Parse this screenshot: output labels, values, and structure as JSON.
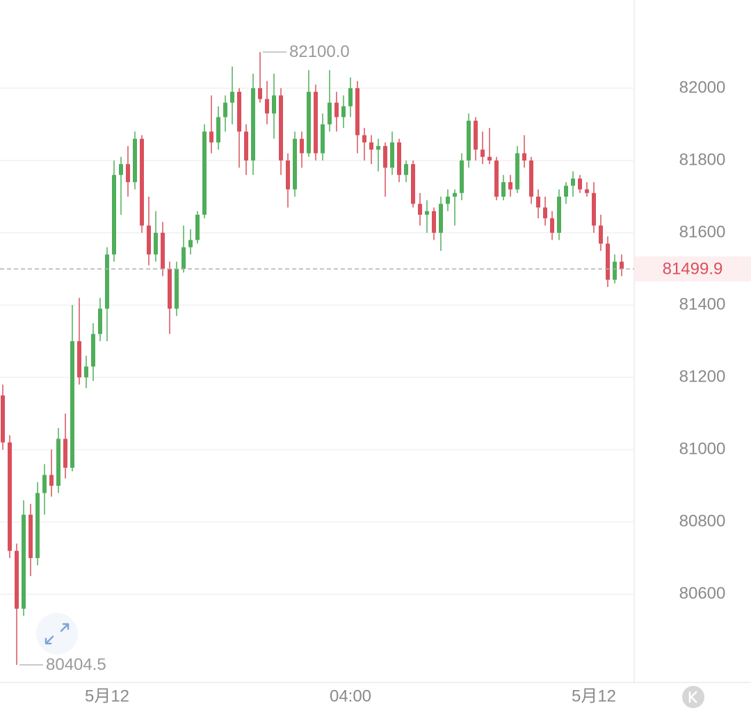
{
  "chart_data": {
    "type": "candlestick",
    "categories": [
      null,
      null,
      null,
      null,
      null,
      null,
      null,
      null,
      null,
      null,
      null,
      null,
      null,
      null,
      null,
      "5月12",
      null,
      null,
      null,
      null,
      null,
      null,
      null,
      null,
      null,
      null,
      null,
      null,
      null,
      null,
      null,
      null,
      null,
      null,
      null,
      null,
      null,
      null,
      null,
      null,
      null,
      null,
      null,
      null,
      null,
      null,
      null,
      null,
      null,
      null,
      "04:00",
      null,
      null,
      null,
      null,
      null,
      null,
      null,
      null,
      null,
      null,
      null,
      null,
      null,
      null,
      null,
      null,
      null,
      null,
      null,
      null,
      null,
      null,
      null,
      null,
      null,
      null,
      null,
      null,
      null,
      null,
      null,
      null,
      null,
      null,
      "5月12",
      null,
      null,
      null,
      null
    ],
    "open": [
      81150,
      81020,
      80720,
      80560,
      80820,
      80700,
      80880,
      80930,
      80900,
      81030,
      80950,
      81300,
      81200,
      81230,
      81320,
      81390,
      81540,
      81760,
      81790,
      81740,
      81860,
      81620,
      81540,
      81600,
      81500,
      81390,
      81500,
      81560,
      81580,
      81650,
      81880,
      81850,
      81920,
      81960,
      81990,
      81880,
      81800,
      82000,
      81970,
      81930,
      81980,
      81800,
      81720,
      81860,
      81820,
      81990,
      81820,
      81900,
      81960,
      81920,
      81950,
      82000,
      81870,
      81850,
      81830,
      81840,
      81780,
      81850,
      81760,
      81790,
      81680,
      81650,
      81660,
      81600,
      81680,
      81700,
      81710,
      81800,
      81910,
      81830,
      81810,
      81800,
      81700,
      81740,
      81720,
      81820,
      81800,
      81700,
      81670,
      81640,
      81600,
      81700,
      81730,
      81750,
      81720,
      81710,
      81620,
      81570,
      81470,
      81520
    ],
    "high": [
      81180,
      81040,
      80740,
      80860,
      80850,
      80910,
      80960,
      81000,
      81060,
      81100,
      81400,
      81420,
      81260,
      81350,
      81420,
      81560,
      81800,
      81810,
      81840,
      81880,
      81870,
      81700,
      81660,
      81630,
      81520,
      81520,
      81620,
      81610,
      81660,
      81900,
      81980,
      81950,
      81980,
      82060,
      82000,
      81900,
      82040,
      82100,
      82020,
      82040,
      82000,
      81820,
      81880,
      81880,
      82050,
      82010,
      81930,
      82050,
      81990,
      81980,
      82030,
      82020,
      81890,
      81870,
      81860,
      81850,
      81880,
      81860,
      81800,
      81800,
      81710,
      81690,
      81670,
      81700,
      81720,
      81720,
      81820,
      81930,
      81920,
      81880,
      81890,
      81810,
      81760,
      81760,
      81840,
      81870,
      81810,
      81720,
      81700,
      81660,
      81720,
      81740,
      81770,
      81760,
      81740,
      81740,
      81650,
      81590,
      81540,
      81540
    ],
    "low": [
      81000,
      80700,
      80404.5,
      80540,
      80650,
      80680,
      80820,
      80870,
      80880,
      80920,
      80940,
      81180,
      81170,
      81190,
      81300,
      81300,
      81520,
      81650,
      81700,
      81720,
      81600,
      81510,
      81520,
      81480,
      81320,
      81370,
      81490,
      81540,
      81570,
      81640,
      81820,
      81830,
      81880,
      81900,
      81780,
      81760,
      81760,
      81960,
      81900,
      81860,
      81760,
      81670,
      81700,
      81780,
      81810,
      81800,
      81800,
      81880,
      81880,
      81890,
      81920,
      81820,
      81800,
      81790,
      81770,
      81700,
      81760,
      81740,
      81740,
      81670,
      81620,
      81600,
      81580,
      81550,
      81660,
      81620,
      81690,
      81780,
      81800,
      81790,
      81790,
      81690,
      81690,
      81700,
      81710,
      81780,
      81680,
      81640,
      81620,
      81580,
      81580,
      81680,
      81700,
      81710,
      81700,
      81600,
      81550,
      81450,
      81460,
      81480
    ],
    "close": [
      81020,
      80720,
      80560,
      80820,
      80700,
      80880,
      80930,
      80900,
      81030,
      80950,
      81300,
      81200,
      81230,
      81320,
      81390,
      81540,
      81760,
      81790,
      81740,
      81860,
      81620,
      81540,
      81600,
      81500,
      81390,
      81500,
      81560,
      81580,
      81650,
      81880,
      81850,
      81920,
      81960,
      81990,
      81880,
      81800,
      82000,
      81970,
      81930,
      81980,
      81800,
      81720,
      81860,
      81820,
      81990,
      81820,
      81900,
      81960,
      81920,
      81950,
      82000,
      81870,
      81850,
      81830,
      81840,
      81780,
      81850,
      81760,
      81790,
      81680,
      81650,
      81660,
      81600,
      81680,
      81700,
      81710,
      81800,
      81910,
      81830,
      81810,
      81800,
      81700,
      81740,
      81720,
      81820,
      81800,
      81700,
      81670,
      81640,
      81600,
      81700,
      81730,
      81750,
      81720,
      81710,
      81620,
      81570,
      81470,
      81520,
      81499.9
    ],
    "up_color": "#4fae5a",
    "down_color": "#d9505c",
    "ylim": [
      80356,
      82244
    ],
    "yticks": [
      80600,
      80800,
      81000,
      81200,
      81400,
      81600,
      81800,
      82000
    ],
    "grid": true,
    "high_label": {
      "value": 82100,
      "label": "82100.0"
    },
    "low_label": 80404.5,
    "last_price": 81499.9
  }
}
